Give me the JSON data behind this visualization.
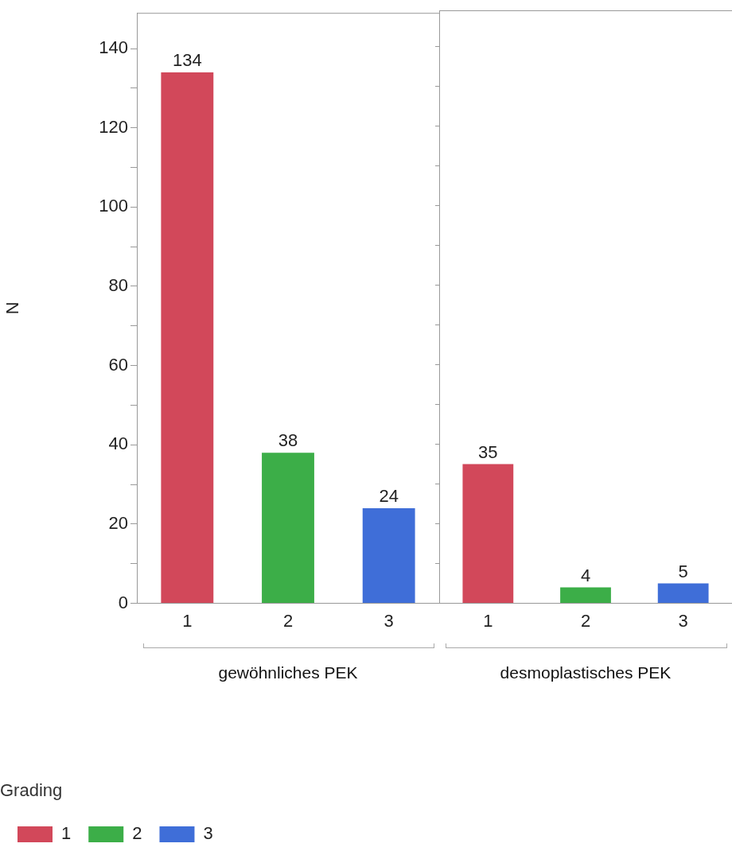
{
  "chart_data": [
    {
      "type": "bar",
      "xlabel": "gewöhnliches PEK",
      "ylabel": "N",
      "categories": [
        "1",
        "2",
        "3"
      ],
      "series": [
        {
          "name": "1",
          "color": "#d2485a",
          "values": [
            134,
            null,
            null
          ]
        },
        {
          "name": "2",
          "color": "#3cae48",
          "values": [
            null,
            38,
            null
          ]
        },
        {
          "name": "3",
          "color": "#3f6ed8",
          "values": [
            null,
            null,
            24
          ]
        }
      ],
      "data_labels": true,
      "ylim": [
        0,
        149
      ],
      "yticks": [
        0,
        {
          "value": 10,
          "label": null
        },
        20,
        {
          "value": 30,
          "label": null
        },
        40,
        {
          "value": 50,
          "label": null
        },
        60,
        {
          "value": 70,
          "label": null
        },
        80,
        {
          "value": 90,
          "label": null
        },
        100,
        {
          "value": 110,
          "label": null
        },
        120,
        {
          "value": 130,
          "label": null
        },
        140
      ],
      "legend": "bottom left",
      "legend_title": "Grading"
    },
    {
      "type": "bar",
      "xlabel": "desmoplastisches PEK",
      "categories": [
        "1",
        "2",
        "3"
      ],
      "series": [
        {
          "color": "#d2485a",
          "values": [
            35,
            null,
            null
          ]
        },
        {
          "color": "#3cae48",
          "values": [
            null,
            4,
            null
          ]
        },
        {
          "color": "#3f6ed8",
          "values": [
            null,
            null,
            5
          ]
        }
      ],
      "data_labels": true,
      "tick_labels": "x",
      "ylim": [
        0,
        149
      ],
      "yticks": [
        0,
        {
          "value": 10,
          "label": null
        },
        20,
        {
          "value": 30,
          "label": null
        },
        40,
        {
          "value": 50,
          "label": null
        },
        60,
        {
          "value": 70,
          "label": null
        },
        80,
        {
          "value": 90,
          "label": null
        },
        100,
        {
          "value": 110,
          "label": null
        },
        120,
        {
          "value": 130,
          "label": null
        },
        140
      ]
    }
  ]
}
